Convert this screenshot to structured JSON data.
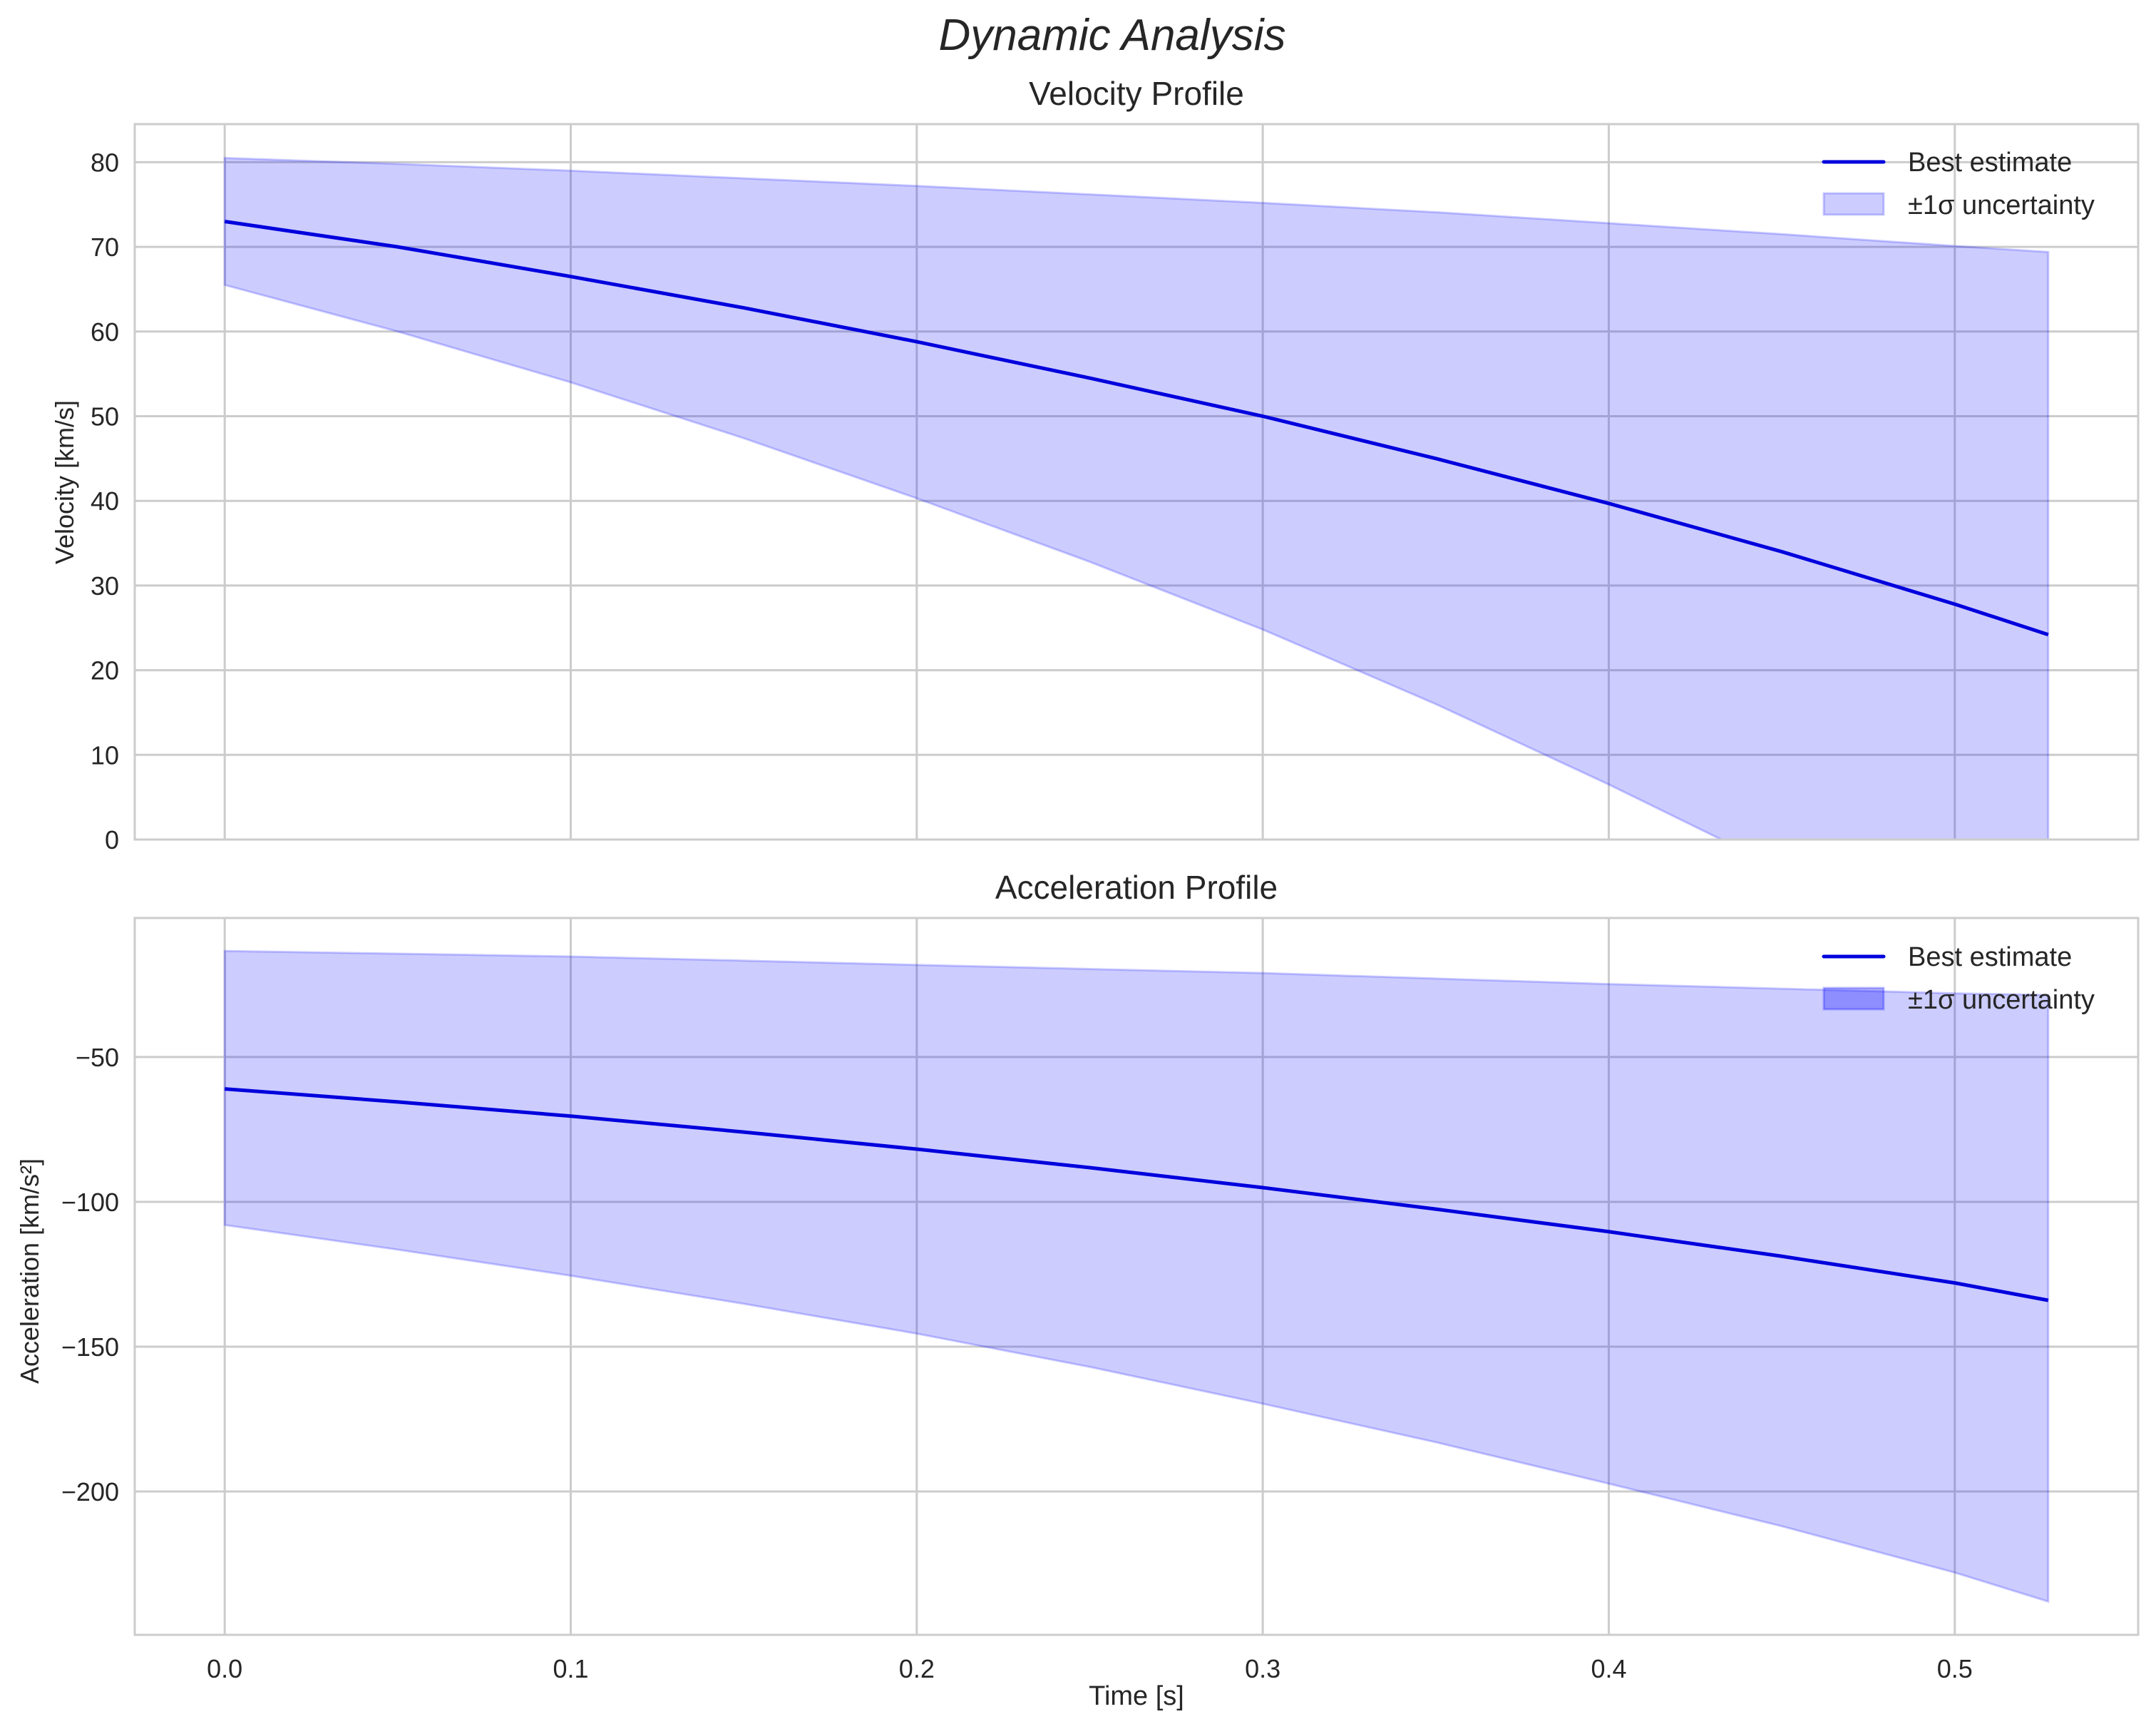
{
  "figure": {
    "suptitle": "Dynamic Analysis"
  },
  "chart_data": [
    {
      "type": "line",
      "title": "Velocity Profile",
      "xlabel": "",
      "ylabel": "Velocity [km/s]",
      "xlim": [
        -0.026,
        0.553
      ],
      "ylim": [
        0,
        84.5
      ],
      "xticks": [
        0.0,
        0.1,
        0.2,
        0.3,
        0.4,
        0.5
      ],
      "xtick_labels": [
        "0.0",
        "0.1",
        "0.2",
        "0.3",
        "0.4",
        "0.5"
      ],
      "xtick_labels_visible": false,
      "yticks": [
        0,
        10,
        20,
        30,
        40,
        50,
        60,
        70,
        80
      ],
      "ytick_labels": [
        "0",
        "10",
        "20",
        "30",
        "40",
        "50",
        "60",
        "70",
        "80"
      ],
      "grid": true,
      "legend_position": "upper right",
      "legend": [
        "Best estimate",
        "±1σ uncertainty"
      ],
      "x": [
        0.0,
        0.05,
        0.1,
        0.15,
        0.2,
        0.25,
        0.3,
        0.35,
        0.4,
        0.45,
        0.5,
        0.527
      ],
      "series": [
        {
          "name": "Best estimate",
          "color": "#0000dd",
          "values": [
            73.0,
            70.0,
            66.5,
            62.8,
            58.8,
            54.5,
            50.0,
            45.0,
            39.7,
            34.0,
            27.8,
            24.2
          ]
        },
        {
          "name": "±1σ upper",
          "color": "#0000ff",
          "alpha": 0.2,
          "values": [
            80.5,
            79.8,
            79.0,
            78.1,
            77.2,
            76.2,
            75.2,
            74.1,
            72.8,
            71.5,
            70.1,
            69.4
          ]
        },
        {
          "name": "±1σ lower",
          "color": "#0000ff",
          "alpha": 0.2,
          "values": [
            65.5,
            60.0,
            54.0,
            47.4,
            40.3,
            32.8,
            24.8,
            16.0,
            6.5,
            -3.5,
            -14.5,
            -21.0
          ]
        }
      ]
    },
    {
      "type": "line",
      "title": "Acceleration Profile",
      "xlabel": "Time [s]",
      "ylabel": "Acceleration [km/s²]",
      "xlim": [
        -0.026,
        0.553
      ],
      "ylim": [
        -249.5,
        -2
      ],
      "xticks": [
        0.0,
        0.1,
        0.2,
        0.3,
        0.4,
        0.5
      ],
      "xtick_labels": [
        "0.0",
        "0.1",
        "0.2",
        "0.3",
        "0.4",
        "0.5"
      ],
      "yticks": [
        -50,
        -100,
        -150,
        -200
      ],
      "ytick_labels": [
        "−50",
        "−100",
        "−150",
        "−200"
      ],
      "grid": true,
      "legend_position": "upper right",
      "legend": [
        "Best estimate",
        "±1σ uncertainty"
      ],
      "x": [
        0.0,
        0.05,
        0.1,
        0.15,
        0.2,
        0.25,
        0.3,
        0.35,
        0.4,
        0.45,
        0.5,
        0.527
      ],
      "series": [
        {
          "name": "Best estimate",
          "color": "#0000dd",
          "values": [
            -61.0,
            -65.5,
            -70.4,
            -75.9,
            -81.8,
            -88.2,
            -95.1,
            -102.5,
            -110.3,
            -118.8,
            -128.0,
            -134.0
          ]
        },
        {
          "name": "±1σ upper",
          "color": "#0000ff",
          "alpha": 0.2,
          "values": [
            -13.4,
            -14.3,
            -15.3,
            -16.7,
            -18.2,
            -19.6,
            -21.0,
            -22.9,
            -24.8,
            -26.4,
            -28.0,
            -28.6
          ]
        },
        {
          "name": "±1σ lower",
          "color": "#0000ff",
          "alpha": 0.2,
          "values": [
            -108.0,
            -116.5,
            -125.5,
            -135.2,
            -145.5,
            -157.0,
            -169.7,
            -183.0,
            -197.3,
            -212.0,
            -228.0,
            -238.0
          ]
        }
      ]
    }
  ]
}
